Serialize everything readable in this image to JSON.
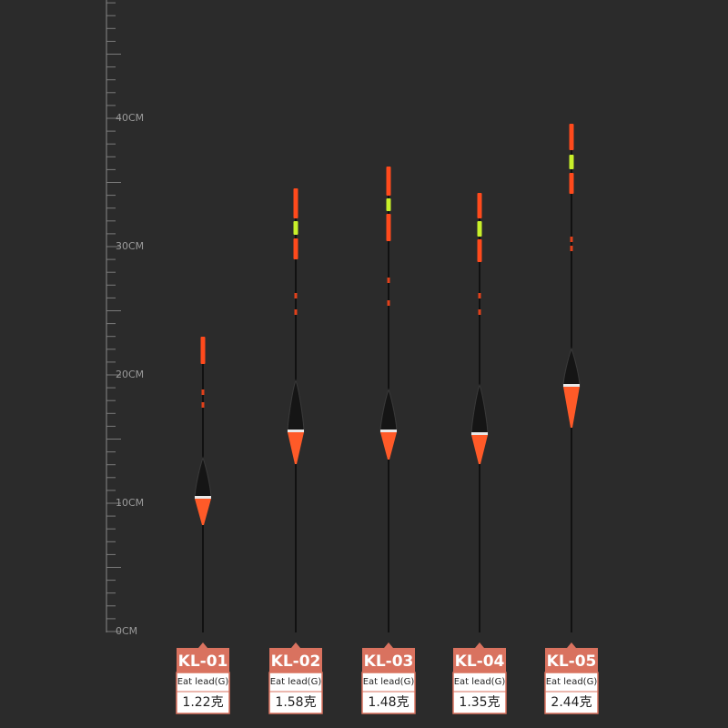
{
  "ruler": {
    "labels": [
      "40CM",
      "30CM",
      "20CM",
      "10CM",
      "0CM"
    ]
  },
  "products": [
    {
      "model": "KL-01",
      "label": "Eat lead(G)",
      "weight": "1.22克"
    },
    {
      "model": "KL-02",
      "label": "Eat lead(G)",
      "weight": "1.58克"
    },
    {
      "model": "KL-03",
      "label": "Eat lead(G)",
      "weight": "1.48克"
    },
    {
      "model": "KL-04",
      "label": "Eat lead(G)",
      "weight": "1.35克"
    },
    {
      "model": "KL-05",
      "label": "Eat lead(G)",
      "weight": "2.44克"
    }
  ]
}
